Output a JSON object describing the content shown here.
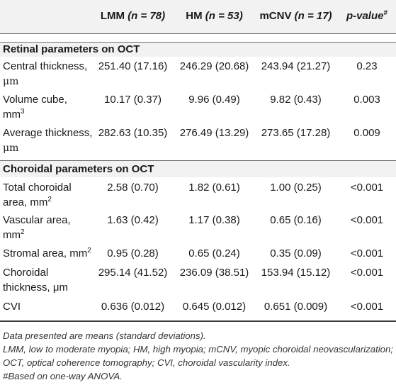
{
  "header": {
    "col_lmm_name": "LMM",
    "col_lmm_n": "(n = 78)",
    "col_hm_name": "HM",
    "col_hm_n": "(n = 53)",
    "col_mcnv_name": "mCNV",
    "col_mcnv_n": "(n = 17)",
    "col_p": "p-value",
    "col_p_sup": "#"
  },
  "sections": {
    "retinal_title": "Retinal parameters on OCT",
    "choroidal_title": "Choroidal parameters on OCT"
  },
  "rows": {
    "central_thickness": {
      "label": "Central thickness,",
      "unit": "μm",
      "lmm": "251.40 (17.16)",
      "hm": "246.29 (20.68)",
      "mcnv": "243.94 (21.27)",
      "p": "0.23"
    },
    "volume_cube": {
      "label": "Volume cube,",
      "unit": "mm",
      "unit_sup": "3",
      "lmm": "10.17 (0.37)",
      "hm": "9.96 (0.49)",
      "mcnv": "9.82 (0.43)",
      "p": "0.003"
    },
    "average_thickness": {
      "label": "Average thickness,",
      "unit": "μm",
      "lmm": "282.63 (10.35)",
      "hm": "276.49 (13.29)",
      "mcnv": "273.65 (17.28)",
      "p": "0.009"
    },
    "total_choroidal_area": {
      "label": "Total choroidal",
      "unit": "area, mm",
      "unit_sup": "2",
      "lmm": "2.58 (0.70)",
      "hm": "1.82 (0.61)",
      "mcnv": "1.00 (0.25)",
      "p": "<0.001"
    },
    "vascular_area": {
      "label": "Vascular area,",
      "unit": "mm",
      "unit_sup": "2",
      "lmm": "1.63 (0.42)",
      "hm": "1.17 (0.38)",
      "mcnv": "0.65 (0.16)",
      "p": "<0.001"
    },
    "stromal_area": {
      "label": "Stromal area, mm",
      "unit_sup": "2",
      "lmm": "0.95 (0.28)",
      "hm": "0.65 (0.24)",
      "mcnv": "0.35 (0.09)",
      "p": "<0.001"
    },
    "choroidal_thickness": {
      "label": "Choroidal",
      "unit": "thickness, μm",
      "lmm": "295.14 (41.52)",
      "hm": "236.09 (38.51)",
      "mcnv": "153.94 (15.12)",
      "p": "<0.001"
    },
    "cvi": {
      "label": "CVI",
      "lmm": "0.636 (0.012)",
      "hm": "0.645 (0.012)",
      "mcnv": "0.651 (0.009)",
      "p": "<0.001"
    }
  },
  "notes": {
    "line1": "Data presented are means (standard deviations).",
    "line2": "LMM, low to moderate myopia; HM, high myopia; mCNV, myopic choroidal neovascularization; OCT, optical coherence tomography; CVI, choroidal vascularity index.",
    "line3": "#Based on one-way ANOVA."
  },
  "colors": {
    "header_shade": "#f2f2f2",
    "rule": "#6f6f6f",
    "text": "#1a1a1a"
  }
}
